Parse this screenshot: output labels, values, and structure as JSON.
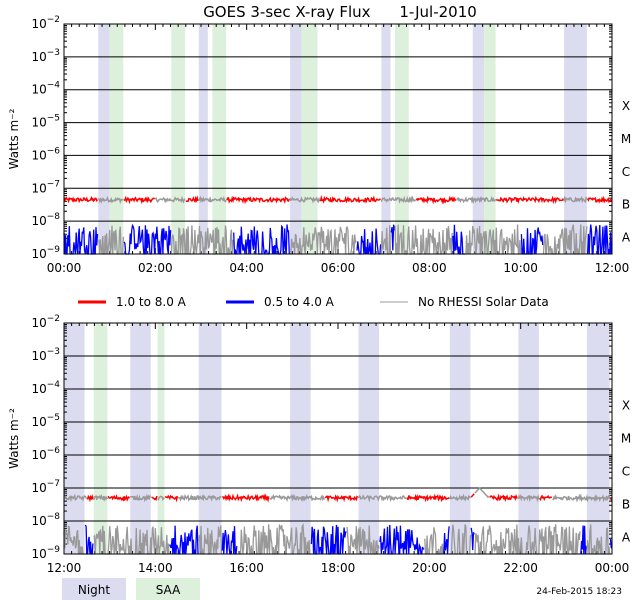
{
  "title": "GOES 3-sec X-ray Flux",
  "date": "1-Jul-2010",
  "timestamp": "24-Feb-2015 18:23",
  "colors": {
    "long": "#ff0000",
    "short": "#0000ff",
    "gray": "#999999",
    "night": "#dcdcf0",
    "saa": "#dcf0dc",
    "grid": "#000000"
  },
  "legend": [
    {
      "label": "1.0 to 8.0 A",
      "color": "#ff0000"
    },
    {
      "label": "0.5 to 4.0 A",
      "color": "#0000ff"
    },
    {
      "label": "No RHESSI Solar Data",
      "color": "#999999"
    }
  ],
  "bottom_legend": [
    {
      "label": "Night",
      "color": "#dcdcf0"
    },
    {
      "label": "SAA",
      "color": "#dcf0dc"
    }
  ],
  "chart_data": [
    {
      "type": "line",
      "title": "GOES 3-sec X-ray Flux  1-Jul-2010",
      "ylabel": "Watts m⁻²",
      "yscale": "log",
      "ylim_exp": [
        -9,
        -2
      ],
      "y_tick_exponents": [
        -9,
        -8,
        -7,
        -6,
        -5,
        -4,
        -3,
        -2
      ],
      "flare_classes": [
        "A",
        "B",
        "C",
        "M",
        "X"
      ],
      "x_range_hours": [
        0,
        12
      ],
      "x_tick_labels": [
        "00:00",
        "02:00",
        "04:00",
        "06:00",
        "08:00",
        "10:00",
        "12:00"
      ],
      "night_hours": [
        [
          0.75,
          1.0
        ],
        [
          2.95,
          3.15
        ],
        [
          4.95,
          5.2
        ],
        [
          6.95,
          7.15
        ],
        [
          8.95,
          9.2
        ],
        [
          10.95,
          11.45
        ]
      ],
      "saa_hours": [
        [
          1.0,
          1.3
        ],
        [
          2.35,
          2.65
        ],
        [
          3.25,
          3.55
        ],
        [
          5.2,
          5.55
        ],
        [
          7.25,
          7.55
        ],
        [
          9.2,
          9.45
        ]
      ],
      "series": [
        {
          "name": "1.0 to 8.0 A",
          "base_log": -7.35,
          "noise": 0.06,
          "gaps_gray_hours": [
            [
              2.0,
              2.35
            ],
            [
              3.1,
              3.4
            ],
            [
              5.5,
              5.6
            ],
            [
              7.15,
              7.7
            ],
            [
              8.6,
              9.4
            ]
          ],
          "bumps": []
        },
        {
          "name": "0.5 to 4.0 A",
          "base_log": -8.5,
          "noise": 0.4,
          "gaps_gray_hours": [
            [
              2.5,
              3.7
            ],
            [
              5.45,
              6.4
            ],
            [
              7.3,
              7.5
            ],
            [
              7.55,
              8.5
            ],
            [
              8.8,
              10.0
            ],
            [
              10.5,
              11.3
            ]
          ],
          "bumps": []
        }
      ]
    },
    {
      "type": "line",
      "ylabel": "Watts m⁻²",
      "yscale": "log",
      "ylim_exp": [
        -9,
        -2
      ],
      "y_tick_exponents": [
        -9,
        -8,
        -7,
        -6,
        -5,
        -4,
        -3,
        -2
      ],
      "flare_classes": [
        "A",
        "B",
        "C",
        "M",
        "X"
      ],
      "x_range_hours": [
        12,
        24
      ],
      "x_tick_labels": [
        "12:00",
        "14:00",
        "16:00",
        "18:00",
        "20:00",
        "22:00",
        "00:00"
      ],
      "night_hours": [
        [
          12.0,
          12.45
        ],
        [
          13.45,
          13.9
        ],
        [
          14.95,
          15.45
        ],
        [
          16.95,
          17.4
        ],
        [
          18.45,
          18.9
        ],
        [
          20.45,
          20.9
        ],
        [
          21.95,
          22.4
        ],
        [
          23.45,
          23.95
        ]
      ],
      "saa_hours": [
        [
          12.65,
          12.95
        ],
        [
          14.05,
          14.2
        ]
      ],
      "series": [
        {
          "name": "1.0 to 8.0 A",
          "base_log": -7.3,
          "noise": 0.06,
          "gaps_gray_hours": [
            [
              12.0,
              12.5
            ],
            [
              14.5,
              15.2
            ],
            [
              16.5,
              17.7
            ],
            [
              18.6,
              19.5
            ],
            [
              21.0,
              21.3
            ],
            [
              22.7,
              23.7
            ]
          ],
          "bumps": [
            {
              "at_hour": 21.1,
              "peak_log": -7.0
            }
          ]
        },
        {
          "name": "0.5 to 4.0 A",
          "base_log": -8.5,
          "noise": 0.4,
          "gaps_gray_hours": [
            [
              12.0,
              12.35
            ],
            [
              12.9,
              13.5
            ],
            [
              13.8,
              14.3
            ],
            [
              15.8,
              17.0
            ],
            [
              18.2,
              18.6
            ],
            [
              19.9,
              20.3
            ],
            [
              21.0,
              23.3
            ]
          ],
          "bumps": []
        }
      ]
    }
  ]
}
